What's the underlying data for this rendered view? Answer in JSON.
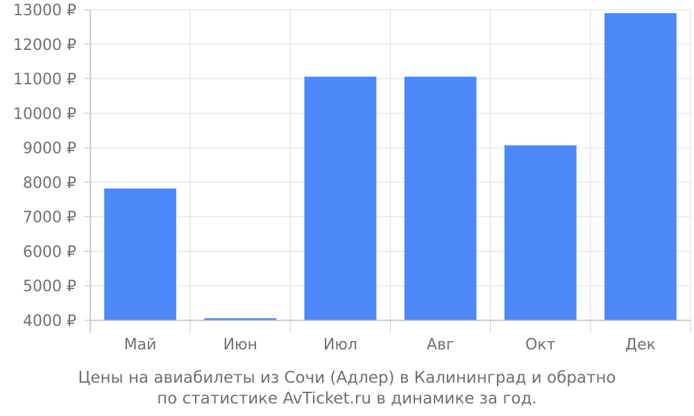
{
  "chart_data": {
    "type": "bar",
    "categories": [
      "Май",
      "Июн",
      "Июл",
      "Авг",
      "Окт",
      "Дек"
    ],
    "values": [
      7820,
      4060,
      11060,
      11060,
      9070,
      12900
    ],
    "ylim": [
      4000,
      13000
    ],
    "yticks": [
      4000,
      5000,
      6000,
      7000,
      8000,
      9000,
      10000,
      11000,
      12000,
      13000
    ],
    "currency": "₽",
    "grid": true,
    "bar_color": "#4d88f9"
  },
  "caption": {
    "line1": "Цены на авиабилеты из Сочи (Адлер) в Калининград и обратно",
    "line2": "по статистике AvTicket.ru в динамике за год."
  }
}
